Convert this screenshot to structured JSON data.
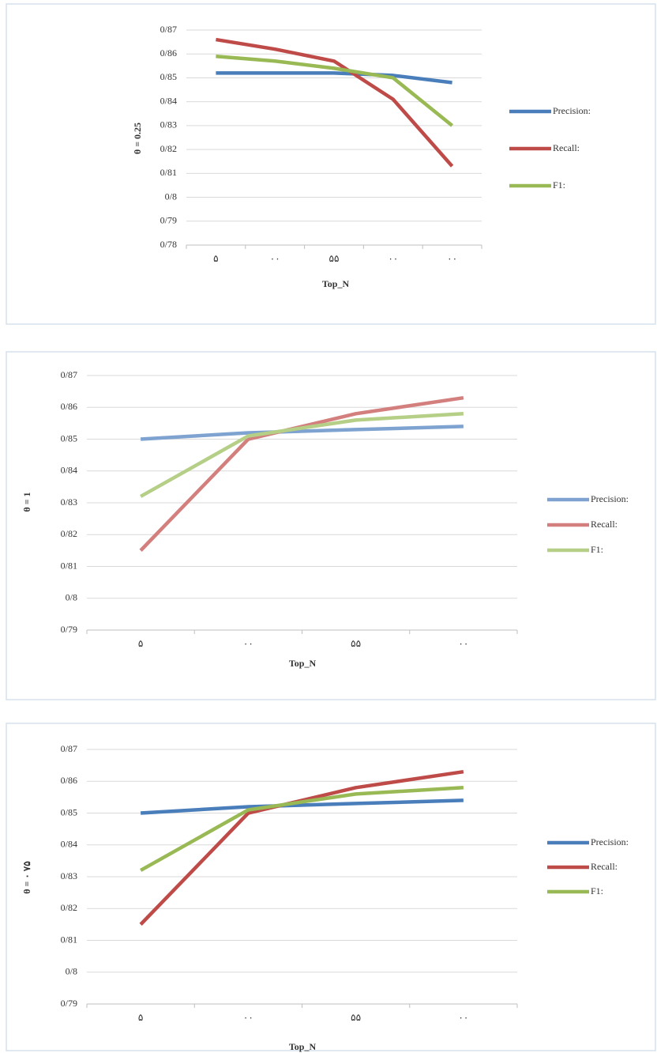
{
  "chart_data": [
    {
      "type": "line",
      "y_label": "θ = 0.25",
      "x_label": "Top_N",
      "categories": [
        "۵",
        "۰۰",
        "۵۵",
        "۰۰",
        "۰۰"
      ],
      "ylim": [
        0.78,
        0.87
      ],
      "yticks": [
        {
          "value": 0.78,
          "label": "0/78"
        },
        {
          "value": 0.79,
          "label": "0/79"
        },
        {
          "value": 0.8,
          "label": "0/8"
        },
        {
          "value": 0.81,
          "label": "0/81"
        },
        {
          "value": 0.82,
          "label": "0/82"
        },
        {
          "value": 0.83,
          "label": "0/83"
        },
        {
          "value": 0.84,
          "label": "0/84"
        },
        {
          "value": 0.85,
          "label": "0/85"
        },
        {
          "value": 0.86,
          "label": "0/86"
        },
        {
          "value": 0.87,
          "label": "0/87"
        }
      ],
      "grid": true,
      "legend": "right",
      "series": [
        {
          "name": "Precision:",
          "color": "#4a7ebb",
          "values": [
            0.852,
            0.852,
            0.852,
            0.851,
            0.848
          ]
        },
        {
          "name": "Recall:",
          "color": "#be4b48",
          "values": [
            0.866,
            0.862,
            0.857,
            0.841,
            0.813
          ]
        },
        {
          "name": "F1:",
          "color": "#98b954",
          "values": [
            0.859,
            0.857,
            0.854,
            0.85,
            0.83
          ]
        }
      ]
    },
    {
      "type": "line",
      "y_label": "θ = 1",
      "x_label": "Top_N",
      "categories": [
        "۵",
        "۰۰",
        "۵۵",
        "۰۰"
      ],
      "ylim": [
        0.79,
        0.87
      ],
      "yticks": [
        {
          "value": 0.79,
          "label": "0/79"
        },
        {
          "value": 0.8,
          "label": "0/8"
        },
        {
          "value": 0.81,
          "label": "0/81"
        },
        {
          "value": 0.82,
          "label": "0/82"
        },
        {
          "value": 0.83,
          "label": "0/83"
        },
        {
          "value": 0.84,
          "label": "0/84"
        },
        {
          "value": 0.85,
          "label": "0/85"
        },
        {
          "value": 0.86,
          "label": "0/86"
        },
        {
          "value": 0.87,
          "label": "0/87"
        }
      ],
      "grid": true,
      "legend": "right",
      "series": [
        {
          "name": "Precision:",
          "color": "#7ea3d0",
          "values": [
            0.85,
            0.852,
            0.853,
            0.854
          ]
        },
        {
          "name": "Recall:",
          "color": "#d27f7d",
          "values": [
            0.815,
            0.85,
            0.858,
            0.863
          ]
        },
        {
          "name": "F1:",
          "color": "#b5cf87",
          "values": [
            0.832,
            0.851,
            0.856,
            0.858
          ]
        }
      ]
    },
    {
      "type": "line",
      "y_label": "θ = ۰ ۷۵",
      "x_label": "Top_N",
      "categories": [
        "۵",
        "۰۰",
        "۵۵",
        "۰۰"
      ],
      "ylim": [
        0.79,
        0.87
      ],
      "yticks": [
        {
          "value": 0.79,
          "label": "0/79"
        },
        {
          "value": 0.8,
          "label": "0/8"
        },
        {
          "value": 0.81,
          "label": "0/81"
        },
        {
          "value": 0.82,
          "label": "0/82"
        },
        {
          "value": 0.83,
          "label": "0/83"
        },
        {
          "value": 0.84,
          "label": "0/84"
        },
        {
          "value": 0.85,
          "label": "0/85"
        },
        {
          "value": 0.86,
          "label": "0/86"
        },
        {
          "value": 0.87,
          "label": "0/87"
        }
      ],
      "grid": true,
      "legend": "right",
      "series": [
        {
          "name": "Precision:",
          "color": "#4a7ebb",
          "values": [
            0.85,
            0.852,
            0.853,
            0.854
          ]
        },
        {
          "name": "Recall:",
          "color": "#be4b48",
          "values": [
            0.815,
            0.85,
            0.858,
            0.863
          ]
        },
        {
          "name": "F1:",
          "color": "#98b954",
          "values": [
            0.832,
            0.851,
            0.856,
            0.858
          ]
        }
      ]
    }
  ]
}
